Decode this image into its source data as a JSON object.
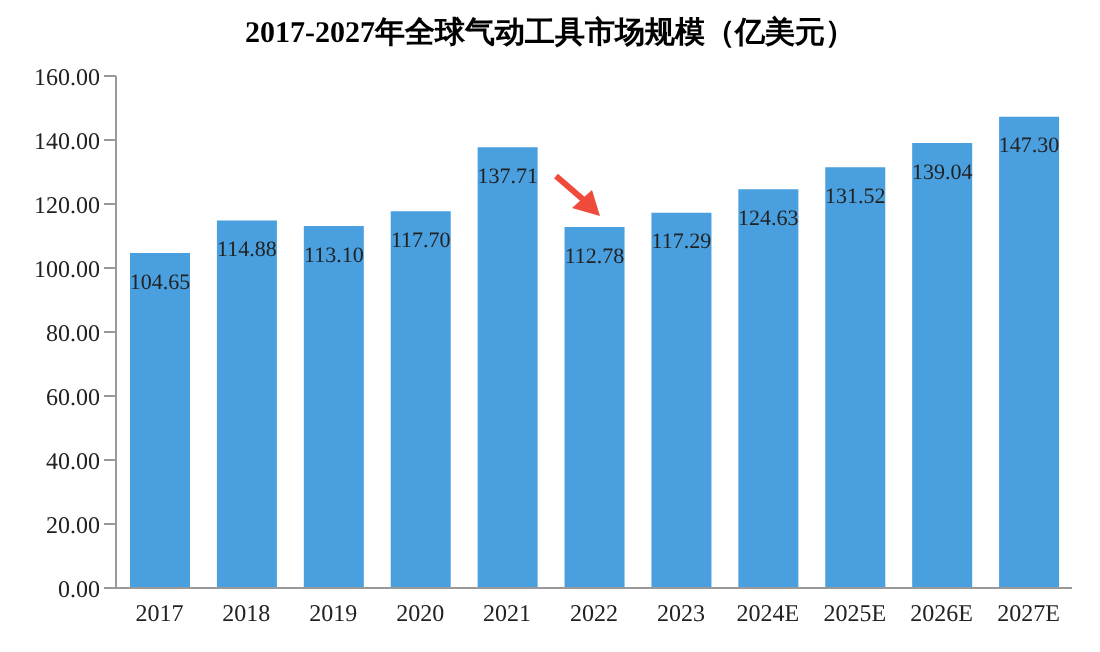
{
  "chart_data": {
    "type": "bar",
    "title": "2017-2027年全球气动工具市场规模（亿美元）",
    "categories": [
      "2017",
      "2018",
      "2019",
      "2020",
      "2021",
      "2022",
      "2023",
      "2024E",
      "2025E",
      "2026E",
      "2027E"
    ],
    "values": [
      104.65,
      114.88,
      113.1,
      117.7,
      137.71,
      112.78,
      117.29,
      124.63,
      131.52,
      139.04,
      147.3
    ],
    "value_labels": [
      "104.65",
      "114.88",
      "113.10",
      "117.70",
      "137.71",
      "112.78",
      "117.29",
      "124.63",
      "131.52",
      "139.04",
      "147.30"
    ],
    "color": "#4a9fdf",
    "ylim": [
      0,
      160
    ],
    "yticks": [
      {
        "value": 0,
        "label": "0.00"
      },
      {
        "value": 20,
        "label": "20.00"
      },
      {
        "value": 40,
        "label": "40.00"
      },
      {
        "value": 60,
        "label": "60.00"
      },
      {
        "value": 80,
        "label": "80.00"
      },
      {
        "value": 100,
        "label": "100.00"
      },
      {
        "value": 120,
        "label": "120.00"
      },
      {
        "value": 140,
        "label": "140.00"
      },
      {
        "value": 160,
        "label": "160.00"
      }
    ],
    "grid": false,
    "legend": false
  }
}
